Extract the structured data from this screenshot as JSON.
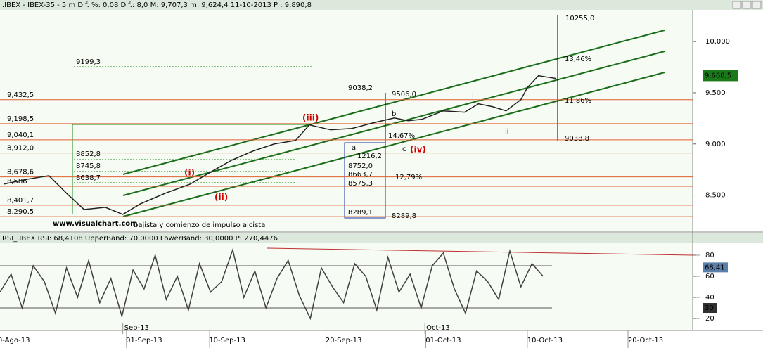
{
  "chart_data": [
    {
      "type": "line",
      "title": ".IBEX - IBEX-35 -  5 m Dif. %: 0,08 Dif.: 8,0 M: 9,707,3 m: 9,624,4 11-10-2013 P : 9,890,8",
      "color": "#202020",
      "x": [
        0.4,
        3.0,
        5.3,
        7.2,
        9.1,
        11.4,
        13.3,
        15.2,
        17.9,
        20.6,
        22.8,
        25.1,
        27.4,
        29.7,
        32.0,
        33.5,
        35.8,
        38.1,
        40.4,
        42.7,
        44.2,
        45.7,
        48.0,
        50.3,
        51.8,
        53.3,
        54.8,
        56.4,
        57.1,
        58.3,
        60.2
      ],
      "values": [
        8608,
        8656,
        8690,
        8519,
        8360,
        8381,
        8312,
        8415,
        8519,
        8608,
        8725,
        8842,
        8931,
        9000,
        9034,
        9186,
        9138,
        9151,
        9206,
        9254,
        9227,
        9241,
        9323,
        9310,
        9392,
        9365,
        9323,
        9433,
        9550,
        9667,
        9640
      ],
      "xlim": [
        0,
        75
      ],
      "ylim": [
        8140,
        10310
      ],
      "yticks": [
        {
          "value": 10000,
          "label": "10.000"
        },
        {
          "value": 9500,
          "label": "9.500"
        },
        {
          "value": 9000,
          "label": "9.000"
        },
        {
          "value": 8500,
          "label": "8.500"
        }
      ],
      "levels_color": "#e06030",
      "levels": [
        {
          "value": 9432.5,
          "label": "9,432,5"
        },
        {
          "value": 9198.5,
          "label": "9,198,5"
        },
        {
          "value": 9040.1,
          "label": "9,040,1"
        },
        {
          "value": 8912.0,
          "label": "8,912,0"
        },
        {
          "value": 8678.6,
          "label": "8,678,6"
        },
        {
          "value": 8586,
          "label": "8,586"
        },
        {
          "value": 8401.7,
          "label": "8,401,7"
        },
        {
          "value": 8290.5,
          "label": "8,290,5"
        }
      ],
      "last_price": {
        "value": 9668.5,
        "label": "9,668,5"
      },
      "annotations": [
        "10255,0",
        "13,46%",
        "11,86%",
        "9038,8",
        "9199,3",
        "9038,2",
        "9506,0",
        "14,67%",
        "8852,8",
        "8745,8",
        "8638,7",
        "1216,2",
        "8752,0",
        "8663,7",
        "12,79%",
        "8575,3",
        "8289,1",
        "8289,8",
        "(i)",
        "(ii)",
        "(iii)",
        "(iv)",
        "a",
        "b",
        "c",
        "i",
        "ii",
        "www.visualchart.com",
        "bajista y comienzo de impulso alcista"
      ]
    },
    {
      "type": "line",
      "title": "RSI_.IBEX RSI: 68,4108 UpperBand: 70,0000 LowerBand: 30,0000 P: 270,4476",
      "color": "#404040",
      "x": [
        0,
        1.2,
        2.4,
        3.6,
        4.8,
        6,
        7.2,
        8.4,
        9.6,
        10.8,
        12,
        13.2,
        14.4,
        15.6,
        16.8,
        18,
        19.2,
        20.4,
        21.6,
        22.8,
        24,
        25.2,
        26.4,
        27.6,
        28.8,
        30,
        31.2,
        32.4,
        33.6,
        34.8,
        36,
        37.2,
        38.4,
        39.6,
        40.8,
        42,
        43.2,
        44.4,
        45.6,
        46.8,
        48,
        49.2,
        50.4,
        51.6,
        52.8,
        54,
        55.2,
        56.4,
        57.6,
        58.8
      ],
      "values": [
        45,
        62,
        30,
        70,
        55,
        25,
        68,
        40,
        75,
        35,
        58,
        22,
        66,
        48,
        80,
        38,
        60,
        28,
        72,
        45,
        55,
        85,
        40,
        65,
        30,
        58,
        75,
        42,
        20,
        68,
        50,
        35,
        72,
        60,
        28,
        78,
        45,
        62,
        30,
        70,
        82,
        48,
        25,
        65,
        55,
        38,
        84,
        50,
        72,
        60
      ],
      "xlim": [
        0,
        75
      ],
      "ylim": [
        8.7,
        91.3
      ],
      "yticks": [
        20,
        40,
        60,
        80
      ],
      "upper_band": 70,
      "lower_band": 30,
      "last_value": {
        "value": 68.41,
        "label": "68,41"
      },
      "lower_label": {
        "value": 30,
        "label": "30"
      },
      "xticks": [
        {
          "value": 1.5,
          "label": "0-Ago-13"
        },
        {
          "value": 15.6,
          "label": "01-Sep-13"
        },
        {
          "value": 24.6,
          "label": "10-Sep-13"
        },
        {
          "value": 37.2,
          "label": "20-Sep-13"
        },
        {
          "value": 48.0,
          "label": "01-Oct-13"
        },
        {
          "value": 59.0,
          "label": "10-Oct-13"
        },
        {
          "value": 69.9,
          "label": "20-Oct-13"
        }
      ],
      "month_ticks": [
        {
          "value": 13.3,
          "label": "Sep-13"
        },
        {
          "value": 46.0,
          "label": "Oct-13"
        }
      ]
    }
  ]
}
